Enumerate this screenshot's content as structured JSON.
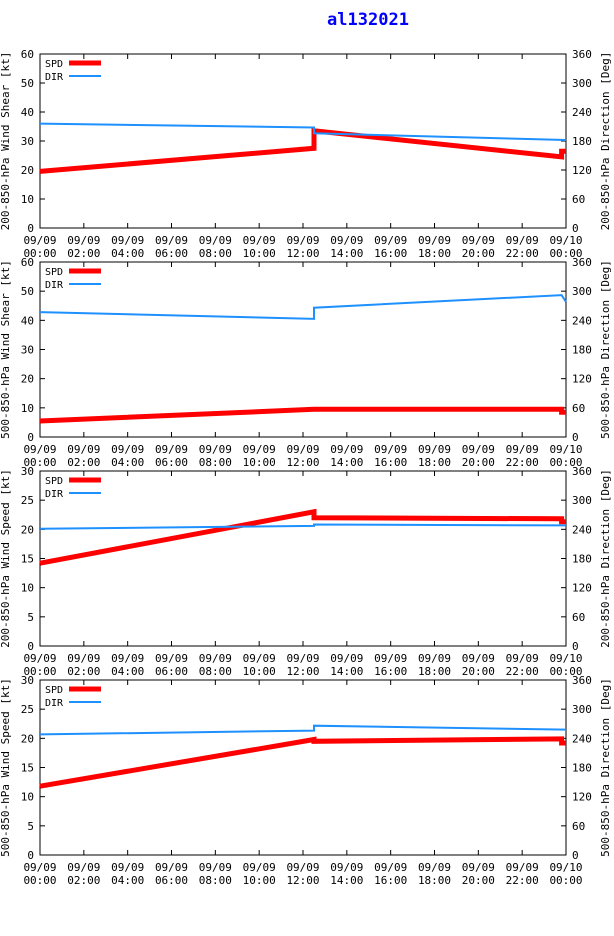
{
  "title": "al132021",
  "colors": {
    "spd": "#ff0000",
    "dir": "#1e90ff",
    "title": "#0000ff",
    "axis": "#000000"
  },
  "time_labels": [
    [
      "09/09",
      "00:00"
    ],
    [
      "09/09",
      "02:00"
    ],
    [
      "09/09",
      "04:00"
    ],
    [
      "09/09",
      "06:00"
    ],
    [
      "09/09",
      "08:00"
    ],
    [
      "09/09",
      "10:00"
    ],
    [
      "09/09",
      "12:00"
    ],
    [
      "09/09",
      "14:00"
    ],
    [
      "09/09",
      "16:00"
    ],
    [
      "09/09",
      "18:00"
    ],
    [
      "09/09",
      "20:00"
    ],
    [
      "09/09",
      "22:00"
    ],
    [
      "09/10",
      "00:00"
    ]
  ],
  "legend": {
    "spd": "SPD",
    "dir": "DIR"
  },
  "chart_data": [
    {
      "type": "line",
      "ylabel": "200-850-hPa Wind Shear [kt]",
      "y2label": "200-850-hPa Direction [Deg]",
      "ylim": [
        0,
        60
      ],
      "yticks": [
        0,
        10,
        20,
        30,
        40,
        50,
        60
      ],
      "y2lim": [
        0,
        360
      ],
      "y2ticks": [
        0,
        60,
        120,
        180,
        240,
        300,
        360
      ],
      "xlim_hours": [
        0,
        24
      ],
      "grid": true,
      "legend_position": "top-left",
      "series": [
        {
          "name": "SPD",
          "axis": "left",
          "x": [
            0,
            12.5,
            12.5,
            23.8,
            23.8,
            24
          ],
          "y": [
            19.5,
            27.5,
            33.5,
            24.5,
            26.5,
            26.5
          ]
        },
        {
          "name": "DIR",
          "axis": "right",
          "x": [
            0,
            12.5,
            12.5,
            24
          ],
          "y": [
            216,
            208,
            196,
            182
          ]
        }
      ]
    },
    {
      "type": "line",
      "ylabel": "500-850-hPa Wind Shear [kt]",
      "y2label": "500-850-hPa Direction [Deg]",
      "ylim": [
        0,
        60
      ],
      "yticks": [
        0,
        10,
        20,
        30,
        40,
        50,
        60
      ],
      "y2lim": [
        0,
        360
      ],
      "y2ticks": [
        0,
        60,
        120,
        180,
        240,
        300,
        360
      ],
      "xlim_hours": [
        0,
        24
      ],
      "grid": true,
      "legend_position": "top-left",
      "series": [
        {
          "name": "SPD",
          "axis": "left",
          "x": [
            0,
            12.5,
            12.5,
            23.8,
            23.8,
            24
          ],
          "y": [
            5.5,
            9.5,
            9.5,
            9.5,
            8.5,
            8.5
          ]
        },
        {
          "name": "DIR",
          "axis": "right",
          "x": [
            0,
            12.5,
            12.5,
            23.8,
            24
          ],
          "y": [
            257,
            243,
            266,
            292,
            278
          ]
        }
      ]
    },
    {
      "type": "line",
      "ylabel": "200-850-hPa Wind Speed [kt]",
      "y2label": "200-850-hPa Direction [Deg]",
      "ylim": [
        0,
        30
      ],
      "yticks": [
        0,
        5,
        10,
        15,
        20,
        25,
        30
      ],
      "y2lim": [
        0,
        360
      ],
      "y2ticks": [
        0,
        60,
        120,
        180,
        240,
        300,
        360
      ],
      "xlim_hours": [
        0,
        24
      ],
      "grid": true,
      "legend_position": "top-left",
      "series": [
        {
          "name": "SPD",
          "axis": "left",
          "x": [
            0,
            12.5,
            12.5,
            23.8,
            23.8,
            24
          ],
          "y": [
            14.2,
            23.0,
            22.0,
            21.8,
            21.3,
            21.3
          ]
        },
        {
          "name": "DIR",
          "axis": "right",
          "x": [
            0,
            12.5,
            12.5,
            24
          ],
          "y": [
            241,
            247,
            250,
            248
          ]
        }
      ]
    },
    {
      "type": "line",
      "ylabel": "500-850-hPa Wind Speed [kt]",
      "y2label": "500-850-hPa Direction [Deg]",
      "ylim": [
        0,
        30
      ],
      "yticks": [
        0,
        5,
        10,
        15,
        20,
        25,
        30
      ],
      "y2lim": [
        0,
        360
      ],
      "y2ticks": [
        0,
        60,
        120,
        180,
        240,
        300,
        360
      ],
      "xlim_hours": [
        0,
        24
      ],
      "grid": true,
      "legend_position": "top-left",
      "series": [
        {
          "name": "SPD",
          "axis": "left",
          "x": [
            0,
            12.5,
            12.5,
            23.8,
            23.8,
            24
          ],
          "y": [
            11.8,
            19.8,
            19.5,
            19.9,
            19.2,
            19.2
          ]
        },
        {
          "name": "DIR",
          "axis": "right",
          "x": [
            0,
            12.5,
            12.5,
            24
          ],
          "y": [
            248,
            256,
            266,
            258
          ]
        }
      ]
    }
  ]
}
